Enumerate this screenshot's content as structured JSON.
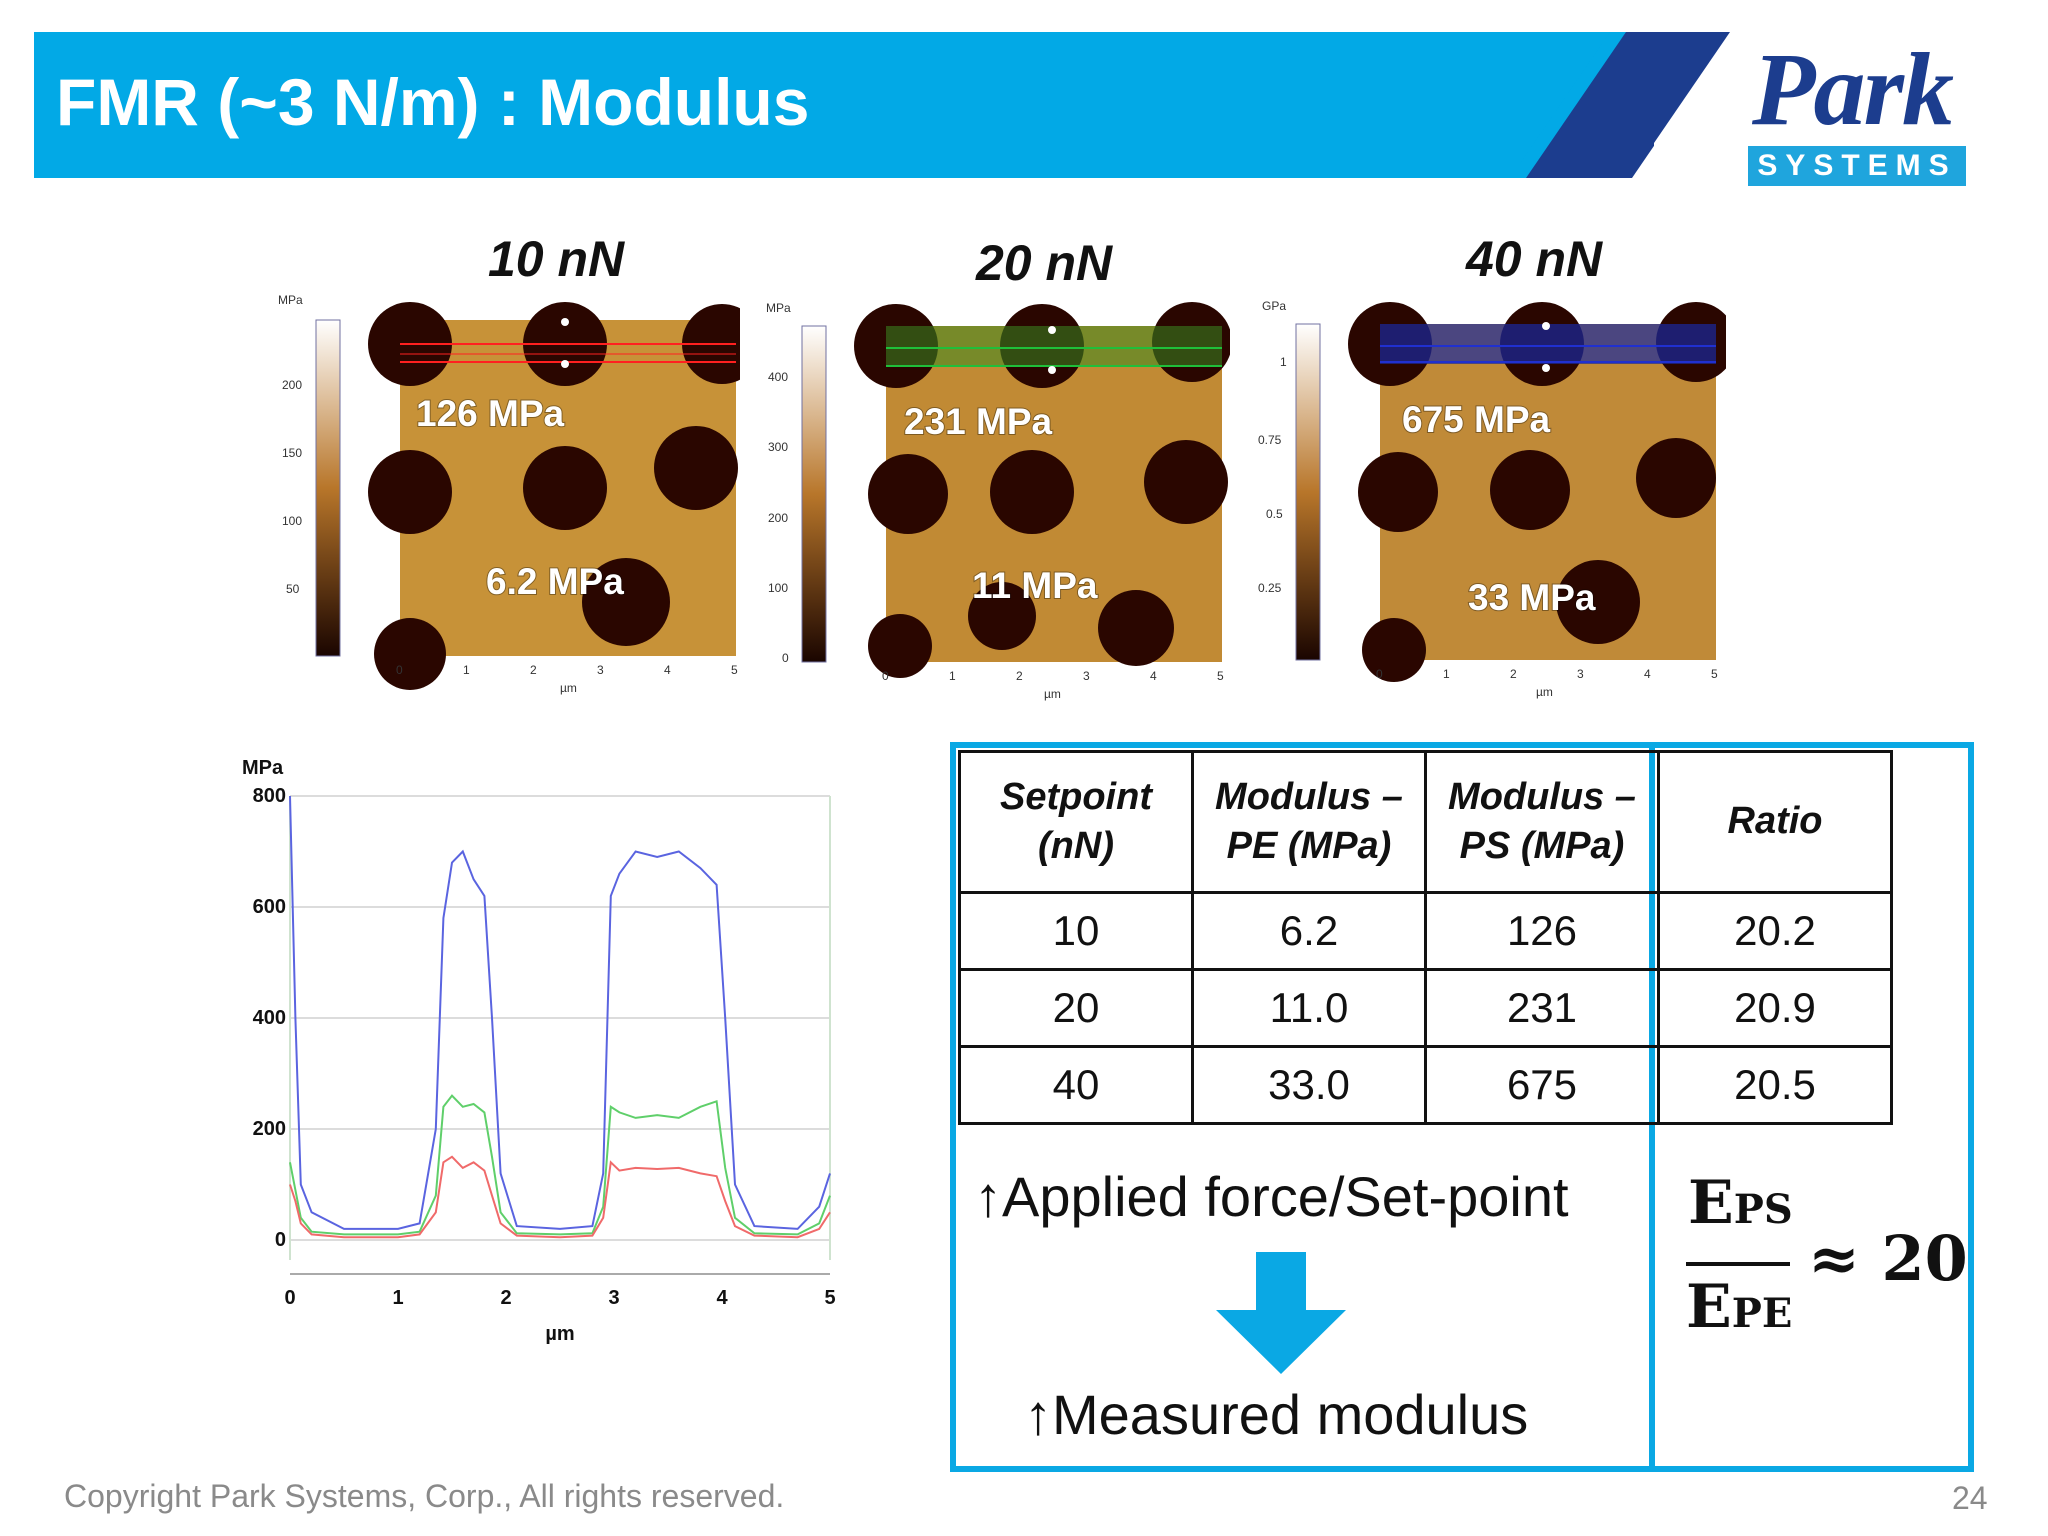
{
  "header": {
    "title": "FMR (~3 N/m) : Modulus"
  },
  "logo": {
    "name": "Park",
    "subtitle": "SYSTEMS"
  },
  "maps": [
    {
      "force_label": "10 nN",
      "ps_value": "126 MPa",
      "pe_value": "6.2 MPa",
      "scale_unit": "MPa",
      "scale_ticks": [
        "200",
        "150",
        "100",
        "50"
      ],
      "line_color": "#ff2020",
      "tone": "#c79238"
    },
    {
      "force_label": "20 nN",
      "ps_value": "231 MPa",
      "pe_value": "11 MPa",
      "scale_unit": "MPa",
      "scale_ticks": [
        "400",
        "300",
        "200",
        "100",
        "0"
      ],
      "line_color": "#1fbf3a",
      "tone": "#c18a34"
    },
    {
      "force_label": "40 nN",
      "ps_value": "675 MPa",
      "pe_value": "33 MPa",
      "scale_unit": "GPa",
      "scale_ticks": [
        "1",
        "0.75",
        "0.5",
        "0.25"
      ],
      "line_color": "#2030d0",
      "tone": "#c08a38"
    }
  ],
  "map_axis": {
    "unit": "µm",
    "ticks": [
      "0",
      "1",
      "2",
      "3",
      "4",
      "5"
    ]
  },
  "chart_data": {
    "type": "line",
    "ylabel": "MPa",
    "xlabel": "µm",
    "xlim": [
      0,
      5
    ],
    "ylim": [
      0,
      800
    ],
    "yticks": [
      0,
      200,
      400,
      600,
      800
    ],
    "xticks": [
      0,
      1,
      2,
      3,
      4,
      5
    ],
    "grid": true,
    "x": [
      0.0,
      0.05,
      0.1,
      0.2,
      0.5,
      1.0,
      1.2,
      1.35,
      1.42,
      1.5,
      1.6,
      1.7,
      1.8,
      1.87,
      1.95,
      2.1,
      2.5,
      2.8,
      2.9,
      2.97,
      3.05,
      3.2,
      3.4,
      3.6,
      3.8,
      3.95,
      4.03,
      4.12,
      4.3,
      4.7,
      4.9,
      5.0
    ],
    "series": [
      {
        "color": "#5a64e0",
        "values": [
          800,
          400,
          100,
          50,
          20,
          20,
          30,
          200,
          580,
          680,
          700,
          650,
          620,
          400,
          120,
          25,
          20,
          25,
          120,
          620,
          660,
          700,
          690,
          700,
          670,
          640,
          400,
          100,
          25,
          20,
          60,
          120
        ]
      },
      {
        "color": "#5fcf6a",
        "values": [
          140,
          90,
          40,
          15,
          10,
          10,
          15,
          80,
          240,
          260,
          240,
          245,
          230,
          150,
          50,
          12,
          10,
          12,
          60,
          240,
          230,
          220,
          225,
          220,
          240,
          250,
          130,
          40,
          12,
          10,
          30,
          80
        ]
      },
      {
        "color": "#f06a6a",
        "values": [
          100,
          70,
          30,
          10,
          5,
          5,
          10,
          50,
          140,
          150,
          130,
          140,
          125,
          80,
          30,
          8,
          5,
          8,
          40,
          140,
          125,
          130,
          128,
          130,
          120,
          115,
          70,
          25,
          8,
          5,
          20,
          50
        ]
      }
    ]
  },
  "table": {
    "headers": [
      "Setpoint\n(nN)",
      "Modulus –\nPE (MPa)",
      "Modulus –\nPS (MPa)",
      "Ratio"
    ],
    "rows": [
      [
        "10",
        "6.2",
        "126",
        "20.2"
      ],
      [
        "20",
        "11.0",
        "231",
        "20.9"
      ],
      [
        "40",
        "33.0",
        "675",
        "20.5"
      ]
    ]
  },
  "notes": {
    "applied": "Applied force/Set-point",
    "measured": "Measured modulus",
    "ratio_num": "E",
    "ratio_num_sub": "PS",
    "ratio_den": "E",
    "ratio_den_sub": "PE",
    "ratio_value": "≈ 20",
    "up_arrow": "↑"
  },
  "footer": {
    "copyright": "Copyright Park Systems, Corp., All rights reserved.",
    "page": "24"
  }
}
